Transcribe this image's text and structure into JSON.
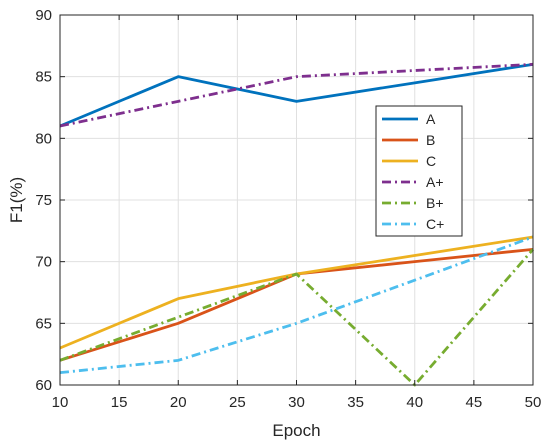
{
  "chart_data": {
    "type": "line",
    "xlabel": "Epoch",
    "ylabel": "F1(%)",
    "xlim": [
      10,
      50
    ],
    "ylim": [
      60,
      90
    ],
    "xticks": [
      10,
      15,
      20,
      25,
      30,
      35,
      40,
      45,
      50
    ],
    "yticks": [
      60,
      65,
      70,
      75,
      80,
      85,
      90
    ],
    "grid": true,
    "legend_position": "right",
    "x": [
      10,
      20,
      30,
      40,
      50
    ],
    "series": [
      {
        "name": "A",
        "values": [
          81,
          85,
          83,
          84.5,
          86
        ],
        "color": "#0072BD",
        "style": "solid"
      },
      {
        "name": "B",
        "values": [
          62,
          65,
          69,
          70,
          71
        ],
        "color": "#D95319",
        "style": "solid"
      },
      {
        "name": "C",
        "values": [
          63,
          67,
          69,
          70.5,
          72
        ],
        "color": "#EDB120",
        "style": "solid"
      },
      {
        "name": "A+",
        "values": [
          81,
          83,
          85,
          85.5,
          86
        ],
        "color": "#7E2F8E",
        "style": "dashdot"
      },
      {
        "name": "B+",
        "values": [
          62,
          65.5,
          69,
          60,
          71
        ],
        "color": "#77AC30",
        "style": "dashdot"
      },
      {
        "name": "C+",
        "values": [
          61,
          62,
          65,
          68.5,
          72
        ],
        "color": "#4DBEEE",
        "style": "dashdot"
      }
    ]
  }
}
